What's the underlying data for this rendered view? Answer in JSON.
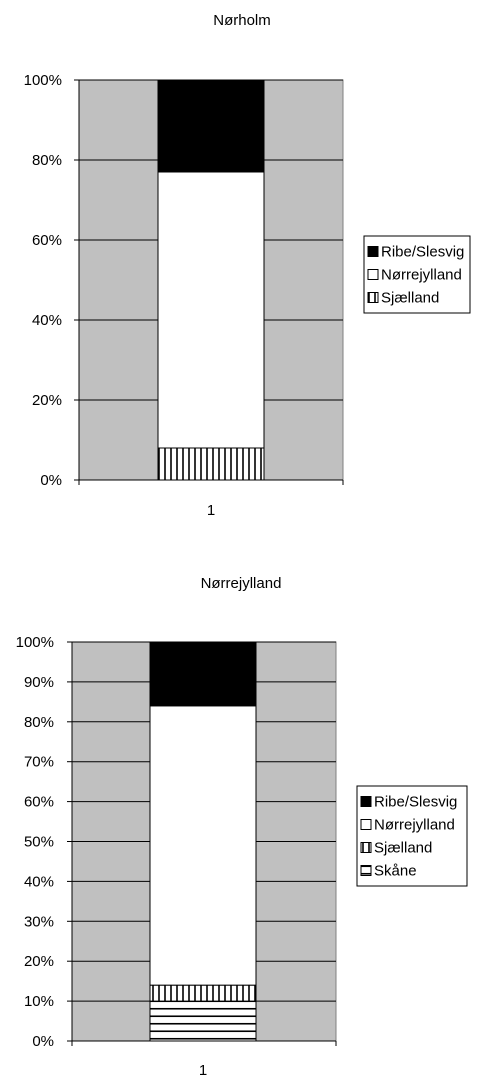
{
  "chart_data": [
    {
      "type": "bar",
      "stacked": true,
      "percent": true,
      "title": "Nørholm",
      "categories": [
        "1"
      ],
      "ylim": [
        0,
        100
      ],
      "yticks": [
        "0%",
        "20%",
        "40%",
        "60%",
        "80%",
        "100%"
      ],
      "series": [
        {
          "name": "Sjælland",
          "values": [
            8
          ],
          "pattern": "vertical"
        },
        {
          "name": "Nørrejylland",
          "values": [
            69
          ],
          "pattern": "white"
        },
        {
          "name": "Ribe/Slesvig",
          "values": [
            23
          ],
          "pattern": "black"
        }
      ],
      "legend_order": [
        "Ribe/Slesvig",
        "Nørrejylland",
        "Sjælland"
      ],
      "legend": "right",
      "grid": true,
      "plot_background": "#c0c0c0"
    },
    {
      "type": "bar",
      "stacked": true,
      "percent": true,
      "title": "Nørrejylland",
      "categories": [
        "1"
      ],
      "ylim": [
        0,
        100
      ],
      "yticks": [
        "0%",
        "10%",
        "20%",
        "30%",
        "40%",
        "50%",
        "60%",
        "70%",
        "80%",
        "90%",
        "100%"
      ],
      "series": [
        {
          "name": "Skåne",
          "values": [
            10
          ],
          "pattern": "horizontal"
        },
        {
          "name": "Sjælland",
          "values": [
            4
          ],
          "pattern": "vertical"
        },
        {
          "name": "Nørrejylland",
          "values": [
            70
          ],
          "pattern": "white"
        },
        {
          "name": "Ribe/Slesvig",
          "values": [
            16
          ],
          "pattern": "black"
        }
      ],
      "legend_order": [
        "Ribe/Slesvig",
        "Nørrejylland",
        "Sjælland",
        "Skåne"
      ],
      "legend": "right",
      "grid": true,
      "plot_background": "#c0c0c0"
    }
  ]
}
